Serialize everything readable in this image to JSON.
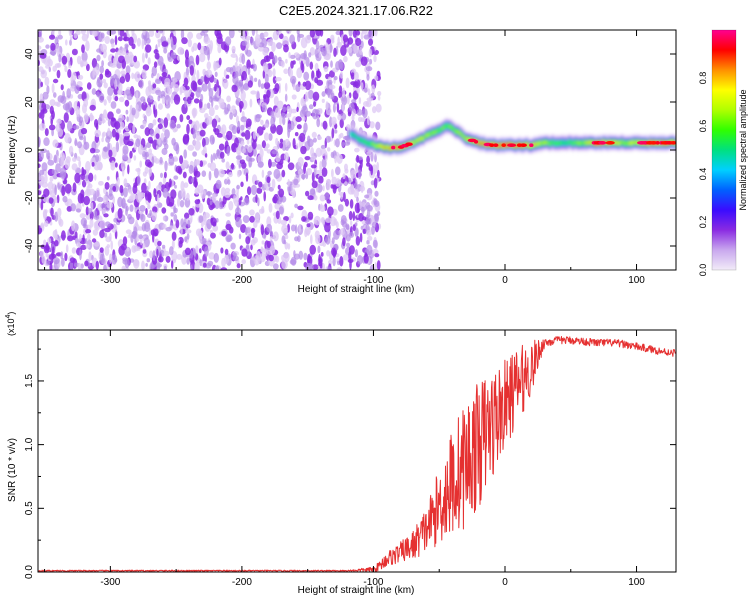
{
  "figure_title": "C2E5.2024.321.17.06.R22",
  "chart_data": [
    {
      "type": "heatmap",
      "title": "C2E5.2024.321.17.06.R22",
      "xlabel": "Height of straight line (km)",
      "ylabel": "Frequency (Hz)",
      "xlim": [
        -355,
        130
      ],
      "ylim": [
        -50,
        50
      ],
      "x_ticks": [
        -300,
        -200,
        -100,
        0,
        100
      ],
      "x_tick_labels": [
        "-300",
        "-200",
        "-100",
        "0",
        "100"
      ],
      "y_ticks": [
        -40,
        -20,
        0,
        20,
        40
      ],
      "y_tick_labels": [
        "-40",
        "-20",
        "0",
        "20",
        "40"
      ],
      "colorbar": {
        "label": "Normalized spectral amplitude",
        "range": [
          0,
          1
        ],
        "ticks": [
          0.0,
          0.2,
          0.4,
          0.6,
          0.8
        ],
        "tick_labels": [
          "0.0",
          "0.2",
          "0.4",
          "0.6",
          "0.8"
        ],
        "colors": [
          "#f2ecf8",
          "#c9a8ee",
          "#8a2be2",
          "#3a0cff",
          "#0060ff",
          "#00d0ff",
          "#00e080",
          "#30ff00",
          "#b0ff00",
          "#ffff00",
          "#ff9000",
          "#ff0000",
          "#ff0090"
        ]
      },
      "noise_region": {
        "x_range": [
          -355,
          -100
        ],
        "mean_amplitude": 0.15
      },
      "signal_track": {
        "x": [
          -118,
          -110,
          -100,
          -90,
          -80,
          -70,
          -60,
          -50,
          -45,
          -40,
          -30,
          -20,
          -10,
          0,
          10,
          20,
          30,
          40,
          50,
          60,
          70,
          80,
          90,
          100,
          110,
          120,
          130
        ],
        "frequency": [
          7,
          4,
          2,
          1,
          1,
          3,
          6,
          8,
          10,
          9,
          5,
          3,
          2,
          2,
          2,
          2,
          3,
          3,
          3,
          3,
          3,
          3,
          3,
          3,
          3,
          3,
          3
        ],
        "amplitude": [
          0.4,
          0.5,
          0.6,
          0.75,
          0.85,
          0.7,
          0.65,
          0.6,
          0.55,
          0.6,
          0.7,
          0.8,
          0.85,
          0.9,
          0.85,
          0.75,
          0.6,
          0.5,
          0.5,
          0.6,
          0.85,
          0.75,
          0.6,
          0.7,
          0.85,
          0.8,
          0.75
        ]
      }
    },
    {
      "type": "line",
      "xlabel": "Height of straight line (km)",
      "ylabel": "SNR (10 * v/v)",
      "y_multiplier_label": "(x10",
      "y_multiplier_exp": "4",
      "xlim": [
        -355,
        130
      ],
      "ylim": [
        0,
        1.9
      ],
      "x_ticks": [
        -300,
        -200,
        -100,
        0,
        100
      ],
      "x_tick_labels": [
        "-300",
        "-200",
        "-100",
        "0",
        "100"
      ],
      "y_ticks": [
        0.0,
        0.5,
        1.0,
        1.5
      ],
      "y_tick_labels": [
        "0.0",
        "0.5",
        "1.0",
        "1.5"
      ],
      "series": [
        {
          "color": "#e53030",
          "x": [
            -355,
            -300,
            -200,
            -120,
            -100,
            -95,
            -90,
            -80,
            -70,
            -60,
            -50,
            -40,
            -30,
            -20,
            -10,
            0,
            10,
            20,
            25,
            30,
            40,
            50,
            60,
            70,
            80,
            90,
            100,
            110,
            120,
            130
          ],
          "y": [
            0.01,
            0.01,
            0.01,
            0.01,
            0.02,
            0.05,
            0.1,
            0.15,
            0.22,
            0.35,
            0.55,
            0.75,
            0.9,
            1.05,
            1.2,
            1.35,
            1.5,
            1.62,
            1.72,
            1.8,
            1.82,
            1.82,
            1.81,
            1.8,
            1.8,
            1.79,
            1.77,
            1.75,
            1.73,
            1.72
          ],
          "noise_amplitude": [
            0.005,
            0.005,
            0.005,
            0.005,
            0.02,
            0.04,
            0.06,
            0.08,
            0.12,
            0.18,
            0.3,
            0.45,
            0.5,
            0.5,
            0.45,
            0.35,
            0.3,
            0.22,
            0.12,
            0.04,
            0.03,
            0.03,
            0.03,
            0.03,
            0.03,
            0.03,
            0.03,
            0.03,
            0.03,
            0.03
          ]
        }
      ]
    }
  ]
}
